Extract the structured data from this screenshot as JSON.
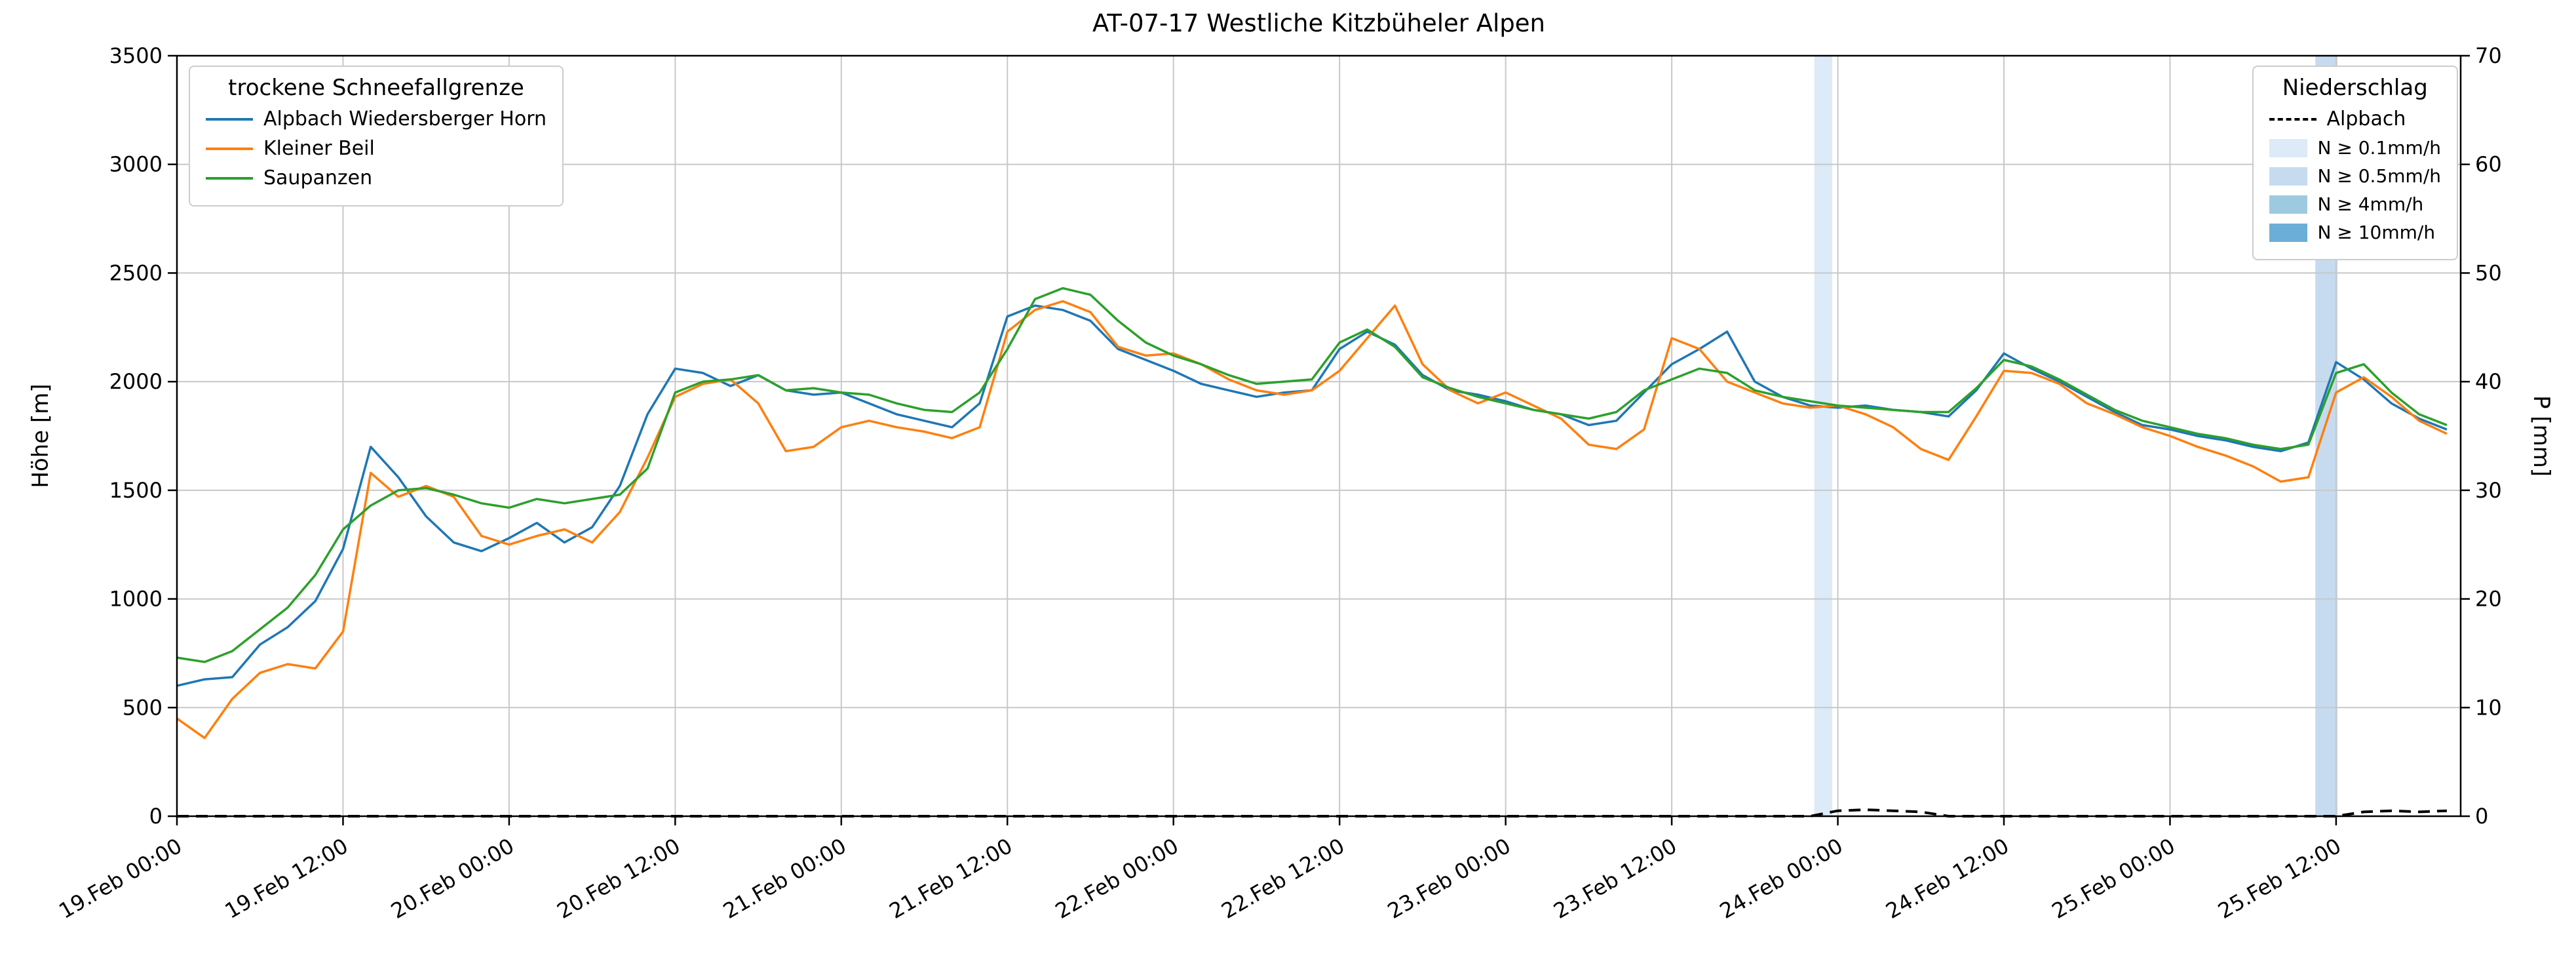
{
  "title": "AT-07-17 Westliche Kitzbüheler Alpen",
  "axes": {
    "y_left_label": "Höhe [m]",
    "y_right_label": "P [mm]",
    "y_left_ticks": [
      0,
      500,
      1000,
      1500,
      2000,
      2500,
      3000,
      3500
    ],
    "y_right_ticks": [
      0,
      10,
      20,
      30,
      40,
      50,
      60,
      70
    ],
    "x_tick_hours": [
      0,
      12,
      24,
      36,
      48,
      60,
      72,
      84,
      96,
      108,
      120,
      132,
      144,
      156
    ],
    "x_tick_labels": [
      "19.Feb 00:00",
      "19.Feb 12:00",
      "20.Feb 00:00",
      "20.Feb 12:00",
      "21.Feb 00:00",
      "21.Feb 12:00",
      "22.Feb 00:00",
      "22.Feb 12:00",
      "23.Feb 00:00",
      "23.Feb 12:00",
      "24.Feb 00:00",
      "24.Feb 12:00",
      "25.Feb 00:00",
      "25.Feb 12:00"
    ]
  },
  "legend_sfg": {
    "title": "trockene Schneefallgrenze",
    "entries": [
      {
        "label": "Alpbach Wiedersberger Horn",
        "color": "#1f77b4"
      },
      {
        "label": "Kleiner Beil",
        "color": "#ff7f0e"
      },
      {
        "label": "Saupanzen",
        "color": "#2ca02c"
      }
    ]
  },
  "legend_precip": {
    "title": "Niederschlag",
    "line_entry": {
      "label": "Alpbach",
      "color": "#000000",
      "style": "dashed"
    },
    "patch_entries": [
      {
        "label": "N ≥ 0.1mm/h",
        "color": "#ddeaf7"
      },
      {
        "label": "N ≥ 0.5mm/h",
        "color": "#c6dbef"
      },
      {
        "label": "N ≥ 4mm/h",
        "color": "#9ecae1"
      },
      {
        "label": "N ≥ 10mm/h",
        "color": "#6baed6"
      }
    ]
  },
  "chart_data": {
    "type": "line",
    "title": "AT-07-17 Westliche Kitzbüheler Alpen",
    "x_unit": "hours since 19.Feb 00:00",
    "xlim": [
      0,
      165
    ],
    "ylim_left": [
      0,
      3500
    ],
    "ylim_right": [
      0,
      70
    ],
    "grid": true,
    "x": [
      0,
      2,
      4,
      6,
      8,
      10,
      12,
      14,
      16,
      18,
      20,
      22,
      24,
      26,
      28,
      30,
      32,
      34,
      36,
      38,
      40,
      42,
      44,
      46,
      48,
      50,
      52,
      54,
      56,
      58,
      60,
      62,
      64,
      66,
      68,
      70,
      72,
      74,
      76,
      78,
      80,
      82,
      84,
      86,
      88,
      90,
      92,
      94,
      96,
      98,
      100,
      102,
      104,
      106,
      108,
      110,
      112,
      114,
      116,
      118,
      120,
      122,
      124,
      126,
      128,
      130,
      132,
      134,
      136,
      138,
      140,
      142,
      144,
      146,
      148,
      150,
      152,
      154,
      156,
      158,
      160,
      162,
      164
    ],
    "series": [
      {
        "name": "Alpbach Wiedersberger Horn",
        "color": "#1f77b4",
        "axis": "left",
        "values": [
          600,
          630,
          640,
          790,
          870,
          990,
          1230,
          1700,
          1560,
          1380,
          1260,
          1220,
          1280,
          1350,
          1260,
          1330,
          1520,
          1850,
          2060,
          2040,
          1980,
          2030,
          1960,
          1940,
          1950,
          1900,
          1850,
          1820,
          1790,
          1900,
          2300,
          2350,
          2330,
          2280,
          2150,
          2100,
          2050,
          1990,
          1960,
          1930,
          1950,
          1960,
          2150,
          2230,
          2170,
          2030,
          1960,
          1940,
          1910,
          1870,
          1850,
          1800,
          1820,
          1950,
          2080,
          2150,
          2230,
          2000,
          1930,
          1890,
          1880,
          1890,
          1870,
          1860,
          1840,
          1960,
          2130,
          2060,
          2000,
          1930,
          1860,
          1800,
          1780,
          1750,
          1730,
          1700,
          1680,
          1720,
          2090,
          2010,
          1900,
          1830,
          1780
        ]
      },
      {
        "name": "Kleiner Beil",
        "color": "#ff7f0e",
        "axis": "left",
        "values": [
          450,
          360,
          540,
          660,
          700,
          680,
          850,
          1580,
          1470,
          1520,
          1470,
          1290,
          1250,
          1290,
          1320,
          1260,
          1400,
          1650,
          1930,
          1990,
          2010,
          1900,
          1680,
          1700,
          1790,
          1820,
          1790,
          1770,
          1740,
          1790,
          2230,
          2330,
          2370,
          2320,
          2160,
          2120,
          2130,
          2080,
          2010,
          1960,
          1940,
          1960,
          2050,
          2200,
          2350,
          2080,
          1960,
          1900,
          1950,
          1890,
          1830,
          1710,
          1690,
          1780,
          2200,
          2150,
          2000,
          1950,
          1900,
          1880,
          1890,
          1850,
          1790,
          1690,
          1640,
          1840,
          2050,
          2040,
          1990,
          1900,
          1850,
          1790,
          1750,
          1700,
          1660,
          1610,
          1540,
          1560,
          1950,
          2020,
          1930,
          1820,
          1760
        ]
      },
      {
        "name": "Saupanzen",
        "color": "#2ca02c",
        "axis": "left",
        "values": [
          730,
          710,
          760,
          860,
          960,
          1110,
          1320,
          1430,
          1500,
          1510,
          1480,
          1440,
          1420,
          1460,
          1440,
          1460,
          1480,
          1600,
          1950,
          2000,
          2010,
          2030,
          1960,
          1970,
          1950,
          1940,
          1900,
          1870,
          1860,
          1950,
          2150,
          2380,
          2430,
          2400,
          2280,
          2180,
          2120,
          2080,
          2030,
          1990,
          2000,
          2010,
          2180,
          2240,
          2160,
          2020,
          1970,
          1930,
          1900,
          1870,
          1850,
          1830,
          1860,
          1960,
          2010,
          2060,
          2040,
          1960,
          1930,
          1910,
          1890,
          1880,
          1870,
          1860,
          1860,
          1970,
          2100,
          2070,
          2010,
          1940,
          1870,
          1820,
          1790,
          1760,
          1740,
          1710,
          1690,
          1710,
          2040,
          2080,
          1950,
          1850,
          1800
        ]
      }
    ],
    "precip_series": {
      "name": "Alpbach",
      "color": "#000000",
      "axis": "right",
      "style": "dashed",
      "values": [
        0,
        0,
        0,
        0,
        0,
        0,
        0,
        0,
        0,
        0,
        0,
        0,
        0,
        0,
        0,
        0,
        0,
        0,
        0,
        0,
        0,
        0,
        0,
        0,
        0,
        0,
        0,
        0,
        0,
        0,
        0,
        0,
        0,
        0,
        0,
        0,
        0,
        0,
        0,
        0,
        0,
        0,
        0,
        0,
        0,
        0,
        0,
        0,
        0,
        0,
        0,
        0,
        0,
        0,
        0,
        0,
        0,
        0,
        0,
        0,
        0.5,
        0.6,
        0.5,
        0.4,
        0,
        0,
        0,
        0,
        0,
        0,
        0,
        0,
        0,
        0,
        0,
        0,
        0,
        0,
        0,
        0.4,
        0.5,
        0.4,
        0.5
      ]
    },
    "precip_bands": [
      {
        "start_hour": 118.3,
        "end_hour": 119.6,
        "level": "N ≥ 0.1mm/h",
        "color": "#ddeaf7"
      },
      {
        "start_hour": 154.5,
        "end_hour": 156.1,
        "level": "N ≥ 0.5mm/h",
        "color": "#c6dbef"
      }
    ]
  }
}
